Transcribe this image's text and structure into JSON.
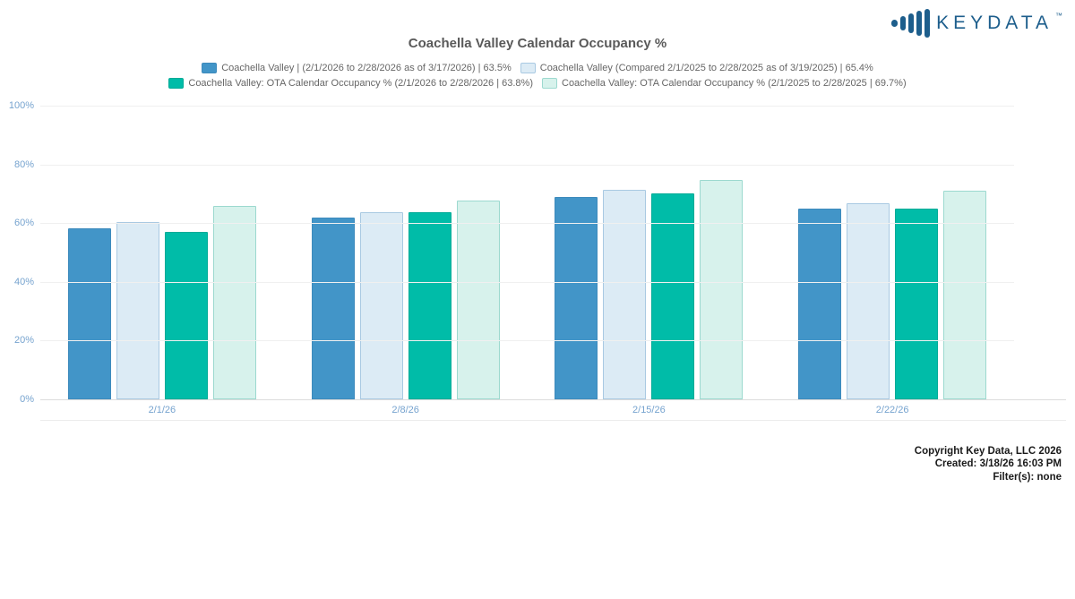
{
  "brand": {
    "logo_text": "KEYDATA",
    "trademark": "™",
    "logo_color": "#1d5e8c",
    "logo_icon": "ascending-bars"
  },
  "chart_data": {
    "type": "bar",
    "title": "Coachella Valley Calendar Occupancy %",
    "categories": [
      "2/1/26",
      "2/8/26",
      "2/15/26",
      "2/22/26"
    ],
    "series": [
      {
        "name": "Coachella Valley | (2/1/2026 to 2/28/2026 as of 3/17/2026) | 63.5%",
        "summary_value": "63.5%",
        "fill": "#4295c8",
        "border": "#3d8abc",
        "values": [
          58.3,
          62.0,
          68.9,
          64.8
        ]
      },
      {
        "name": "Coachella Valley (Compared 2/1/2025 to 2/28/2025 as of 3/19/2025) | 65.4%",
        "summary_value": "65.4%",
        "fill": "#dcebf5",
        "border": "#a9c9e2",
        "values": [
          60.3,
          63.6,
          71.2,
          66.7
        ]
      },
      {
        "name": "Coachella Valley: OTA Calendar Occupancy % (2/1/2026 to 2/28/2026 | 63.8%)",
        "summary_value": "63.8%",
        "fill": "#00bca8",
        "border": "#00ab97",
        "values": [
          57.0,
          63.6,
          70.0,
          64.8
        ]
      },
      {
        "name": "Coachella Valley: OTA Calendar Occupancy % (2/1/2025 to 2/28/2025 | 69.7%)",
        "summary_value": "69.7%",
        "fill": "#d7f2ec",
        "border": "#9cd9cf",
        "values": [
          66.0,
          67.8,
          74.6,
          71.0
        ]
      }
    ],
    "ylim": [
      0,
      100
    ],
    "y_tick_step": 20,
    "y_tick_suffix": "%",
    "grid": true,
    "legend_position": "top",
    "legend_rows": [
      [
        0,
        1
      ],
      [
        2,
        3
      ]
    ],
    "axis_label_color": "#76a3cf"
  },
  "footer": {
    "copyright": "Copyright Key Data, LLC 2026",
    "created": "Created: 3/18/26 16:03 PM",
    "filters": "Filter(s): none"
  }
}
